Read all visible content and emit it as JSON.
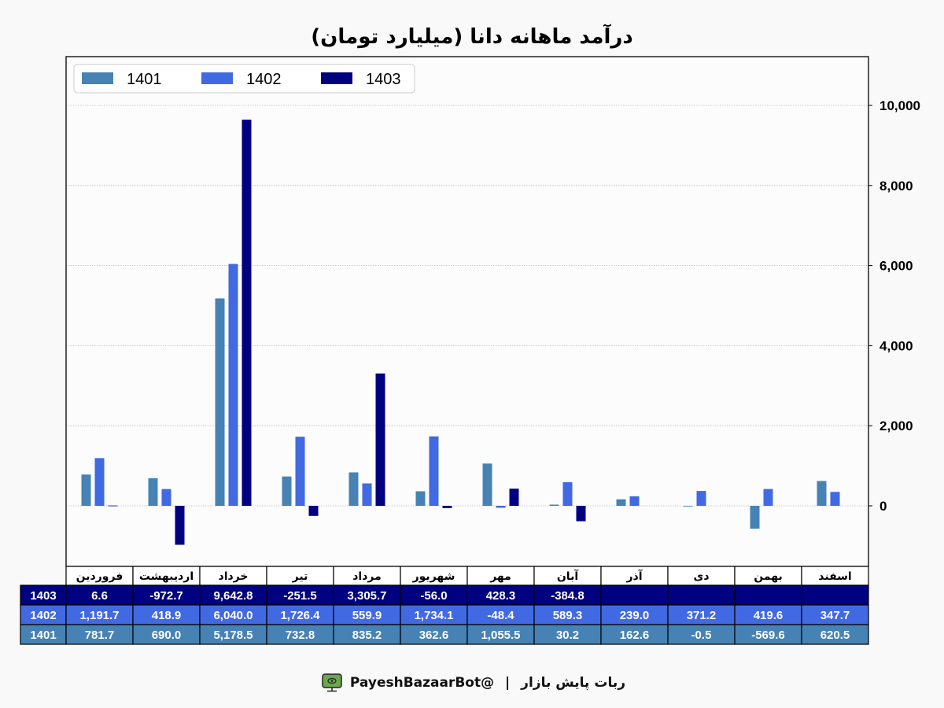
{
  "title": "درآمد ماهانه دانا (میلیارد تومان)",
  "footer": {
    "bot_name": "ربات پایش بازار",
    "separator": "|",
    "handle": "@PayeshBazaarBot"
  },
  "chart_data": {
    "type": "bar",
    "categories": [
      "فروردین",
      "اردیبهشت",
      "خرداد",
      "تیر",
      "مرداد",
      "شهریور",
      "مهر",
      "آبان",
      "آذر",
      "دی",
      "بهمن",
      "اسفند"
    ],
    "series": [
      {
        "name": "1401",
        "color": "#4682b4",
        "values": [
          781.7,
          690.0,
          5178.5,
          732.8,
          835.2,
          362.6,
          1055.5,
          30.2,
          162.6,
          -0.5,
          -569.6,
          620.5
        ],
        "labels": [
          "781.7",
          "690.0",
          "5,178.5",
          "732.8",
          "835.2",
          "362.6",
          "1,055.5",
          "30.2",
          "162.6",
          "-0.5",
          "-569.6",
          "620.5"
        ]
      },
      {
        "name": "1402",
        "color": "#4169e1",
        "values": [
          1191.7,
          418.9,
          6040.0,
          1726.4,
          559.9,
          1734.1,
          -48.4,
          589.3,
          239.0,
          371.2,
          419.6,
          347.7
        ],
        "labels": [
          "1,191.7",
          "418.9",
          "6,040.0",
          "1,726.4",
          "559.9",
          "1,734.1",
          "-48.4",
          "589.3",
          "239.0",
          "371.2",
          "419.6",
          "347.7"
        ]
      },
      {
        "name": "1403",
        "color": "#000080",
        "values": [
          6.6,
          -972.7,
          9642.8,
          -251.5,
          3305.7,
          -56.0,
          428.3,
          -384.8,
          null,
          null,
          null,
          null
        ],
        "labels": [
          "6.6",
          "-972.7",
          "9,642.8",
          "-251.5",
          "3,305.7",
          "-56.0",
          "428.3",
          "-384.8",
          "",
          "",
          "",
          ""
        ]
      }
    ],
    "yticks": [
      0,
      2000,
      4000,
      6000,
      8000,
      10000
    ],
    "ytick_labels": [
      "0",
      "2,000",
      "4,000",
      "6,000",
      "8,000",
      "10,000"
    ],
    "ylim": [
      -1500,
      11200
    ],
    "grid": true,
    "legend_position": "top-left",
    "table_row_order": [
      "1403",
      "1402",
      "1401"
    ]
  }
}
